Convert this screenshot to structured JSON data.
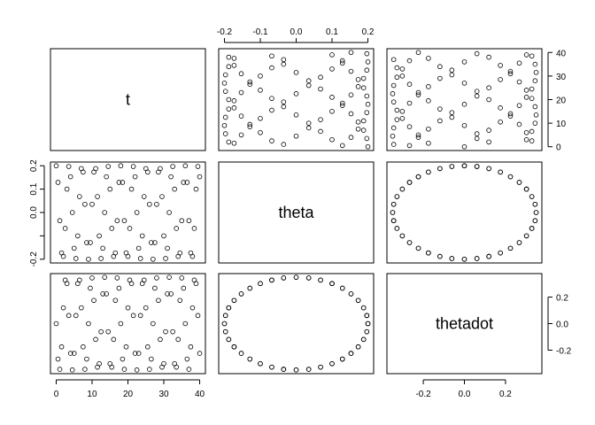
{
  "chart_data": {
    "type": "scatter-matrix",
    "variables": [
      "t",
      "theta",
      "thetadot"
    ],
    "ranges": {
      "t": [
        0,
        40
      ],
      "theta": [
        -0.2,
        0.2
      ],
      "thetadot": [
        -0.349,
        0.349
      ]
    },
    "ticks": {
      "t": {
        "values": [
          0,
          10,
          20,
          30,
          40
        ],
        "labels": [
          "0",
          "10",
          "20",
          "30",
          "40"
        ]
      },
      "theta": {
        "values": [
          -0.2,
          -0.1,
          0.0,
          0.1,
          0.2
        ],
        "labels": [
          "-0.2",
          "",
          "0.0",
          "0.1",
          "0.2"
        ],
        "top_labels": [
          "-0.2",
          "-0.1",
          "0.0",
          "0.1",
          "0.2"
        ]
      },
      "thetadot": {
        "values": [
          -0.2,
          0.0,
          0.2
        ],
        "labels": [
          "-0.2",
          "0.0",
          "0.2"
        ]
      }
    },
    "grid": false,
    "marker": "open-circle",
    "color": "#000000",
    "data": {
      "t": [
        0,
        0.5,
        1,
        1.5,
        2,
        2.5,
        3,
        3.5,
        4,
        4.5,
        5,
        5.5,
        6,
        6.5,
        7,
        7.5,
        8,
        8.5,
        9,
        9.5,
        10,
        10.5,
        11,
        11.5,
        12,
        12.5,
        13,
        13.5,
        14,
        14.5,
        15,
        15.5,
        16,
        16.5,
        17,
        17.5,
        18,
        18.5,
        19,
        19.5,
        20,
        20.5,
        21,
        21.5,
        22,
        22.5,
        23,
        23.5,
        24,
        24.5,
        25,
        25.5,
        26,
        26.5,
        27,
        27.5,
        28,
        28.5,
        29,
        29.5,
        30,
        30.5,
        31,
        31.5,
        32,
        32.5,
        33,
        33.5,
        34,
        34.5,
        35,
        35.5,
        36,
        36.5,
        37,
        37.5,
        38,
        38.5,
        39,
        39.5,
        40
      ],
      "theta": [
        0.2,
        0.129,
        -0.035,
        -0.173,
        -0.188,
        -0.068,
        0.1,
        0.197,
        0.153,
        0,
        -0.153,
        -0.197,
        -0.1,
        0.068,
        0.188,
        0.173,
        0.035,
        -0.129,
        -0.2,
        -0.129,
        0.035,
        0.173,
        0.188,
        0.068,
        -0.1,
        -0.197,
        -0.153,
        0,
        0.153,
        0.197,
        0.1,
        -0.068,
        -0.188,
        -0.173,
        -0.035,
        0.129,
        0.2,
        0.129,
        -0.035,
        -0.173,
        -0.188,
        -0.068,
        0.1,
        0.197,
        0.153,
        0,
        -0.153,
        -0.197,
        -0.1,
        0.068,
        0.188,
        0.173,
        0.035,
        -0.129,
        -0.2,
        -0.129,
        0.035,
        0.173,
        0.188,
        0.068,
        -0.1,
        -0.197,
        -0.153,
        0,
        0.153,
        0.197,
        0.1,
        -0.068,
        -0.188,
        -0.173,
        -0.035,
        0.129,
        0.2,
        0.129,
        -0.035,
        -0.173,
        -0.188,
        -0.068,
        0.1,
        0.197,
        0.153
      ],
      "thetadot": [
        0,
        -0.267,
        -0.344,
        -0.175,
        0.119,
        0.328,
        0.302,
        0.061,
        -0.224,
        -0.349,
        -0.224,
        0.061,
        0.302,
        0.328,
        0.119,
        -0.175,
        -0.344,
        -0.267,
        0,
        0.267,
        0.344,
        0.175,
        -0.119,
        -0.328,
        -0.302,
        -0.061,
        0.224,
        0.349,
        0.224,
        -0.061,
        -0.302,
        -0.328,
        -0.119,
        0.175,
        0.344,
        0.267,
        0,
        -0.267,
        -0.344,
        -0.175,
        0.119,
        0.328,
        0.302,
        0.061,
        -0.224,
        -0.349,
        -0.224,
        0.061,
        0.302,
        0.328,
        0.119,
        -0.175,
        -0.344,
        -0.267,
        0,
        0.267,
        0.344,
        0.175,
        -0.119,
        -0.328,
        -0.302,
        -0.061,
        0.224,
        0.349,
        0.224,
        -0.061,
        -0.302,
        -0.328,
        -0.119,
        0.175,
        0.344,
        0.267,
        0,
        -0.267,
        -0.344,
        -0.175,
        0.119,
        0.328,
        0.302,
        0.061,
        -0.224
      ]
    }
  }
}
